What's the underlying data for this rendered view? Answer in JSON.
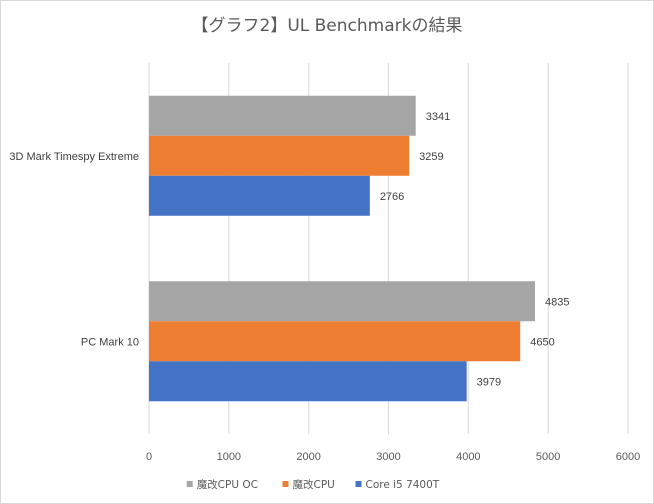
{
  "chart_data": {
    "type": "bar",
    "orientation": "horizontal",
    "title": "【グラフ2】UL Benchmarkの結果",
    "categories": [
      "3D Mark Timespy Extreme",
      "PC Mark 10"
    ],
    "series": [
      {
        "name": "魔改CPU OC",
        "color": "#a5a5a5",
        "values": [
          3341,
          4835
        ]
      },
      {
        "name": "魔改CPU",
        "color": "#ed7d31",
        "values": [
          3259,
          4650
        ]
      },
      {
        "name": "Core i5 7400T",
        "color": "#4472c4",
        "values": [
          2766,
          3979
        ]
      }
    ],
    "xlim": [
      0,
      6000
    ],
    "x_ticks": [
      0,
      1000,
      2000,
      3000,
      4000,
      5000,
      6000
    ],
    "grid": true,
    "legend_position": "bottom"
  }
}
